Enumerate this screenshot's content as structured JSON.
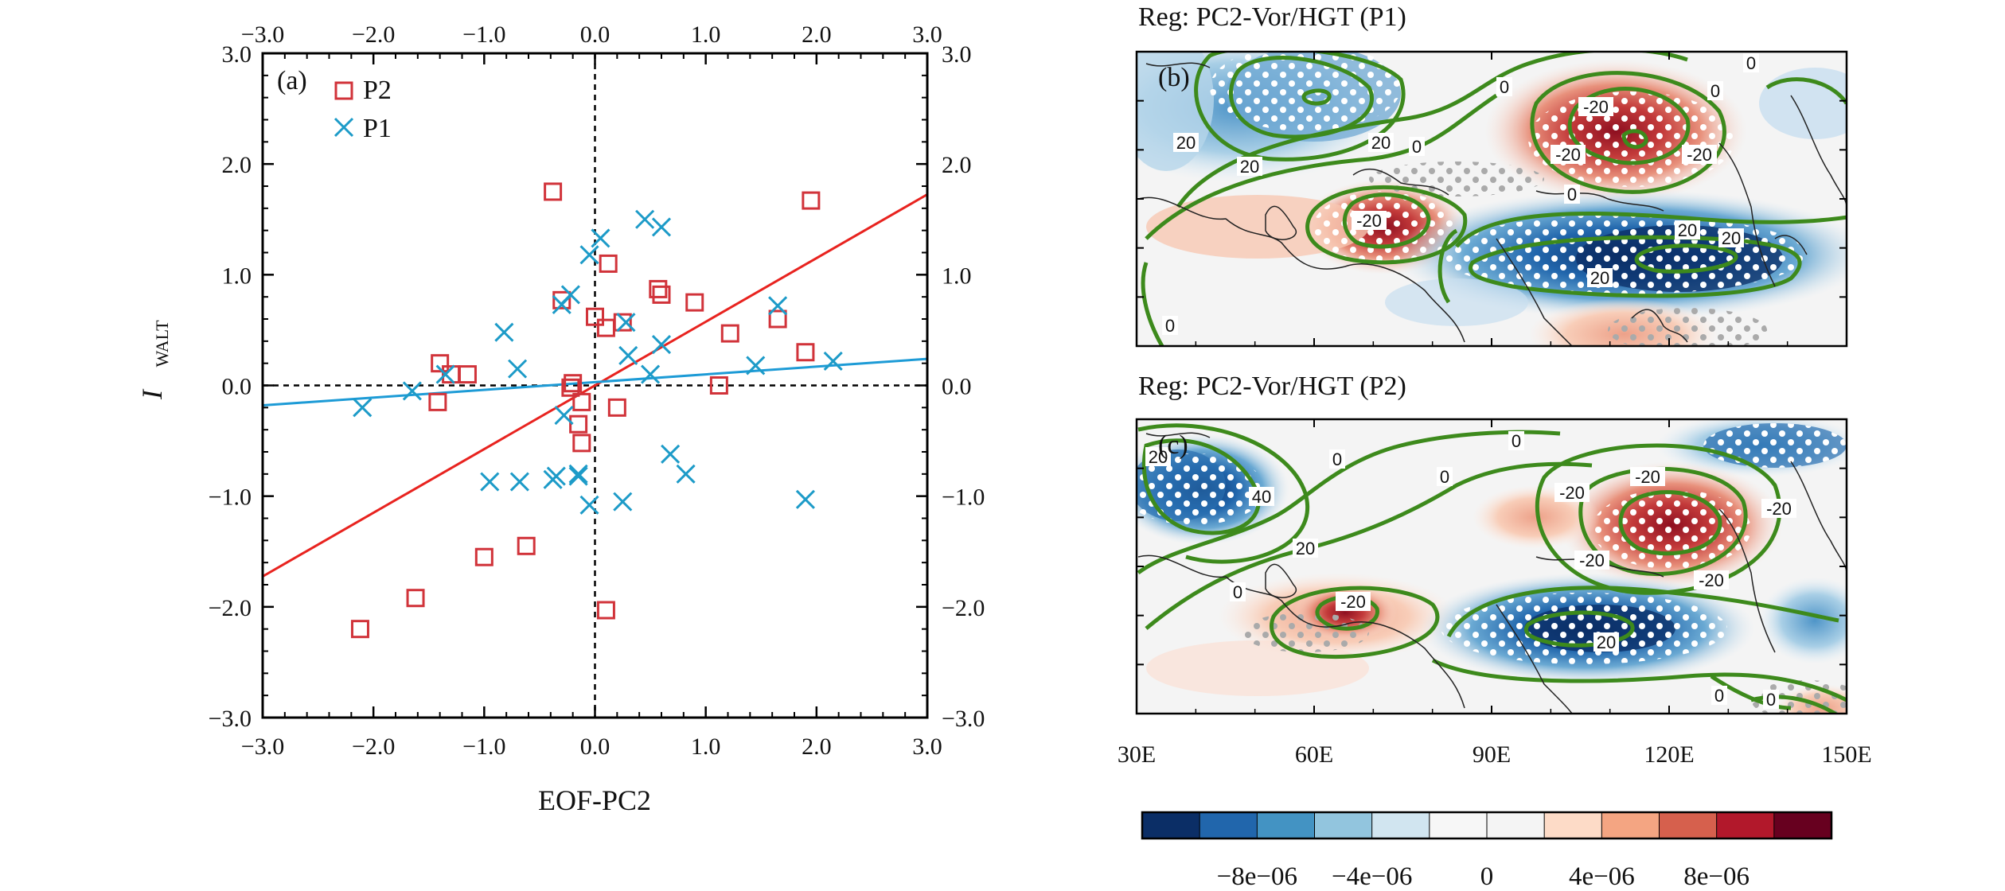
{
  "colors": {
    "p2": "#d1333a",
    "p1": "#1d9bc8",
    "fit_p2": "#e8231f",
    "fit_p1": "#1d9bd6",
    "contour": "#3d8a1c",
    "colorbar": [
      "#0b2e66",
      "#2166ac",
      "#4393c3",
      "#92c5de",
      "#d1e5f0",
      "#f7f7f7",
      "#f4f4f4",
      "#fddbc7",
      "#f4a582",
      "#d6604d",
      "#b2182b",
      "#67001f"
    ]
  },
  "chart_data": [
    {
      "type": "scatter",
      "panel_label": "(a)",
      "xlabel": "EOF-PC2",
      "ylabel": "I",
      "ylabel_sub": "WALT",
      "xlim": [
        -3.0,
        3.0
      ],
      "ylim": [
        -3.0,
        3.0
      ],
      "xticks": [
        "−3.0",
        "−2.0",
        "−1.0",
        "0.0",
        "1.0",
        "2.0",
        "3.0"
      ],
      "yticks": [
        "−3.0",
        "−2.0",
        "−1.0",
        "0.0",
        "1.0",
        "2.0",
        "3.0"
      ],
      "legend": {
        "placement": "top-left",
        "entries": [
          "P2",
          "P1"
        ]
      },
      "series": [
        {
          "name": "P2",
          "marker": "square",
          "x": [
            -0.38,
            0.12,
            -0.3,
            0.0,
            0.25,
            0.1,
            0.57,
            0.6,
            0.9,
            1.22,
            1.65,
            1.9,
            1.95,
            1.12,
            -1.4,
            -1.3,
            -1.15,
            -1.42,
            -0.2,
            -0.12,
            -0.15,
            -0.12,
            0.2,
            -1.0,
            -0.62,
            -1.62,
            -2.12,
            0.1,
            -0.22
          ],
          "y": [
            1.75,
            1.1,
            0.77,
            0.62,
            0.57,
            0.52,
            0.87,
            0.82,
            0.75,
            0.47,
            0.6,
            0.3,
            1.67,
            0.0,
            0.2,
            0.1,
            0.1,
            -0.15,
            0.02,
            -0.15,
            -0.35,
            -0.52,
            -0.2,
            -1.55,
            -1.45,
            -1.92,
            -2.2,
            -2.03,
            -0.02
          ]
        },
        {
          "name": "P1",
          "marker": "x",
          "x": [
            0.45,
            0.6,
            0.05,
            -0.05,
            -0.22,
            -0.3,
            0.28,
            0.3,
            0.6,
            -0.82,
            -0.7,
            -1.35,
            -1.65,
            -2.1,
            -0.28,
            0.5,
            1.45,
            1.65,
            2.15,
            -0.35,
            -0.15,
            -0.95,
            -0.68,
            -0.38,
            -0.15,
            -0.05,
            0.25,
            0.68,
            0.82,
            1.9
          ],
          "y": [
            1.5,
            1.43,
            1.33,
            1.18,
            0.82,
            0.73,
            0.57,
            0.27,
            0.37,
            0.48,
            0.15,
            0.1,
            -0.05,
            -0.2,
            -0.27,
            0.1,
            0.18,
            0.72,
            0.22,
            -0.82,
            -0.8,
            -0.87,
            -0.87,
            -0.85,
            -0.82,
            -1.08,
            -1.05,
            -0.62,
            -0.8,
            -1.03
          ]
        }
      ],
      "fit_lines": [
        {
          "name": "P2",
          "slope": 0.575,
          "intercept": 0.0
        },
        {
          "name": "P1",
          "slope": 0.07,
          "intercept": 0.03
        }
      ]
    },
    {
      "type": "heatmap",
      "panel_label": "(b)",
      "title": "Reg: PC2-Vor/HGT (P1)",
      "contour_labels": [
        "0",
        "0",
        "0",
        "0",
        "0",
        "0",
        "20",
        "20",
        "20",
        "20",
        "20",
        "20",
        "-20",
        "-20",
        "-20",
        "-20"
      ]
    },
    {
      "type": "heatmap",
      "panel_label": "(c)",
      "title": "Reg: PC2-Vor/HGT (P2)",
      "contour_labels": [
        "0",
        "0",
        "0",
        "0",
        "0",
        "0",
        "20",
        "20",
        "20",
        "40",
        "-20",
        "-20",
        "-20",
        "-20",
        "-20",
        "-20"
      ]
    }
  ],
  "map_xticks": [
    "30E",
    "60E",
    "90E",
    "120E",
    "150E"
  ],
  "colorbar": {
    "labels": [
      "−8e−06",
      "−4e−06",
      "0",
      "4e−06",
      "8e−06"
    ]
  }
}
